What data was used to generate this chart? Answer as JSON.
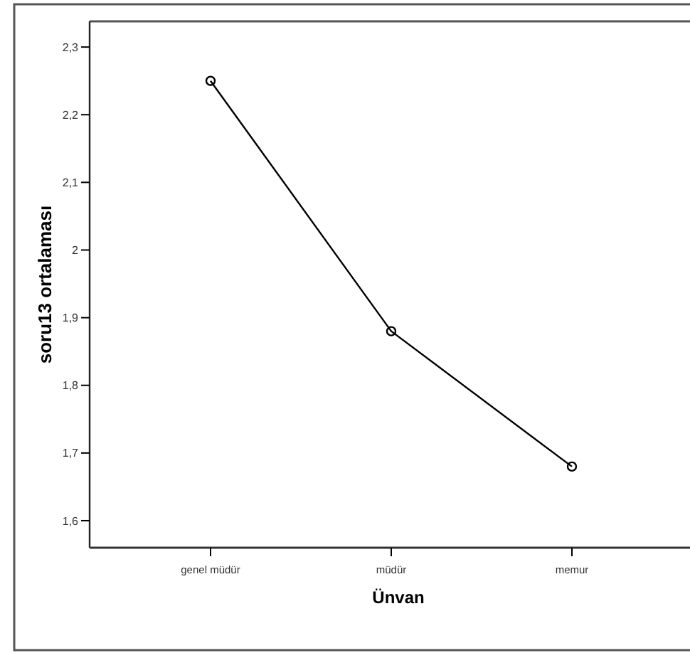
{
  "chart_data": {
    "type": "line",
    "xlabel": "Ünvan",
    "ylabel": "soru13 ortalaması",
    "categories": [
      "genel müdür",
      "müdür",
      "memur"
    ],
    "series": [
      {
        "color": "#000000",
        "values": [
          2.25,
          1.88,
          1.68
        ]
      }
    ],
    "ylim": [
      1.56,
      2.338
    ],
    "yticks": [
      {
        "value": 1.6,
        "label": "1,6"
      },
      {
        "value": 1.7,
        "label": "1,7"
      },
      {
        "value": 1.8,
        "label": "1,8"
      },
      {
        "value": 1.9,
        "label": "1,9"
      },
      {
        "value": 2,
        "label": "2"
      },
      {
        "value": 2.1,
        "label": "2,1"
      },
      {
        "value": 2.2,
        "label": "2,2"
      },
      {
        "value": 2.3,
        "label": "2,3"
      }
    ],
    "marker": "circle",
    "grid": false
  }
}
